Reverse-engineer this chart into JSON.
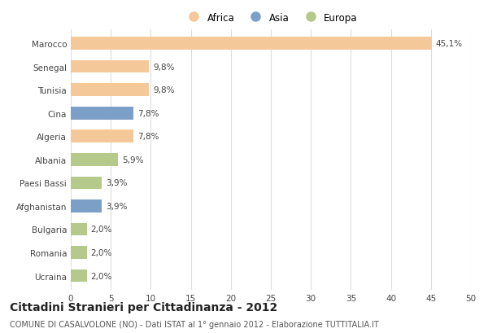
{
  "categories": [
    "Marocco",
    "Senegal",
    "Tunisia",
    "Cina",
    "Algeria",
    "Albania",
    "Paesi Bassi",
    "Afghanistan",
    "Bulgaria",
    "Romania",
    "Ucraina"
  ],
  "values": [
    45.1,
    9.8,
    9.8,
    7.8,
    7.8,
    5.9,
    3.9,
    3.9,
    2.0,
    2.0,
    2.0
  ],
  "labels": [
    "45,1%",
    "9,8%",
    "9,8%",
    "7,8%",
    "7,8%",
    "5,9%",
    "3,9%",
    "3,9%",
    "2,0%",
    "2,0%",
    "2,0%"
  ],
  "continents": [
    "Africa",
    "Africa",
    "Africa",
    "Asia",
    "Africa",
    "Europa",
    "Europa",
    "Asia",
    "Europa",
    "Europa",
    "Europa"
  ],
  "colors": {
    "Africa": "#F5C89A",
    "Asia": "#7B9FC7",
    "Europa": "#B5C98A"
  },
  "legend_entries": [
    "Africa",
    "Asia",
    "Europa"
  ],
  "title": "Cittadini Stranieri per Cittadinanza - 2012",
  "subtitle": "COMUNE DI CASALVOLONE (NO) - Dati ISTAT al 1° gennaio 2012 - Elaborazione TUTTITALIA.IT",
  "xlim": [
    0,
    50
  ],
  "xticks": [
    0,
    5,
    10,
    15,
    20,
    25,
    30,
    35,
    40,
    45,
    50
  ],
  "background_color": "#FFFFFF",
  "grid_color": "#DDDDDD",
  "bar_height": 0.55,
  "title_fontsize": 10,
  "subtitle_fontsize": 7,
  "label_fontsize": 7.5,
  "tick_fontsize": 7.5,
  "legend_fontsize": 8.5
}
